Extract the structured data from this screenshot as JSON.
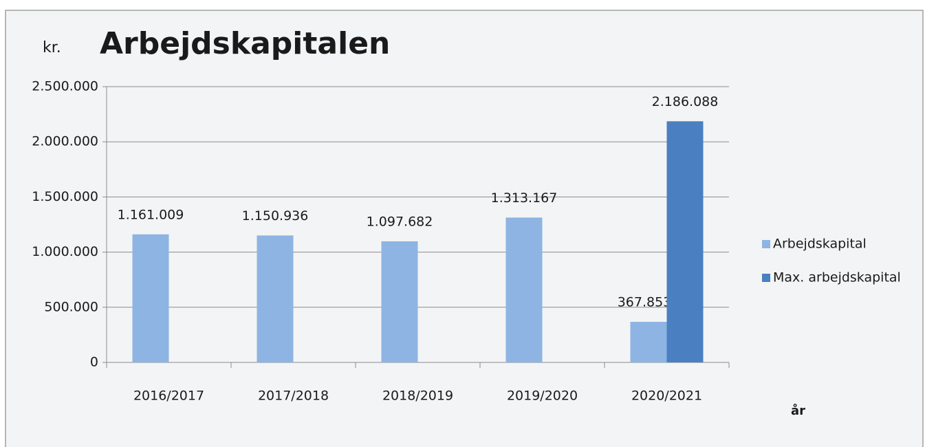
{
  "chart_data": {
    "type": "bar",
    "title": "Arbejdskapitalen",
    "y_axis_label": "kr.",
    "x_axis_label": "år",
    "categories": [
      "2016/2017",
      "2017/2018",
      "2018/2019",
      "2019/2020",
      "2020/2021"
    ],
    "series": [
      {
        "name": "Arbejdskapital",
        "color": "#8eb4e3",
        "values": [
          1161009,
          1150936,
          1097682,
          1313167,
          367853
        ],
        "value_labels": [
          "1.161.009",
          "1.150.936",
          "1.097.682",
          "1.313.167",
          "367.853"
        ]
      },
      {
        "name": "Max. arbejdskapital",
        "color": "#4a7fc1",
        "values": [
          null,
          null,
          null,
          null,
          2186088
        ],
        "value_labels": [
          null,
          null,
          null,
          null,
          "2.186.088"
        ]
      }
    ],
    "ylim": [
      0,
      2500000
    ],
    "yticks": [
      0,
      {
        "value": 500000,
        "label": "500.000"
      },
      {
        "value": 1000000,
        "label": "1.000.000"
      },
      {
        "value": 1500000,
        "label": "1.500.000"
      },
      {
        "value": 2000000,
        "label": "2.000.000"
      },
      {
        "value": 2500000,
        "label": "2.500.000"
      }
    ],
    "grid": true,
    "legend": "right"
  }
}
